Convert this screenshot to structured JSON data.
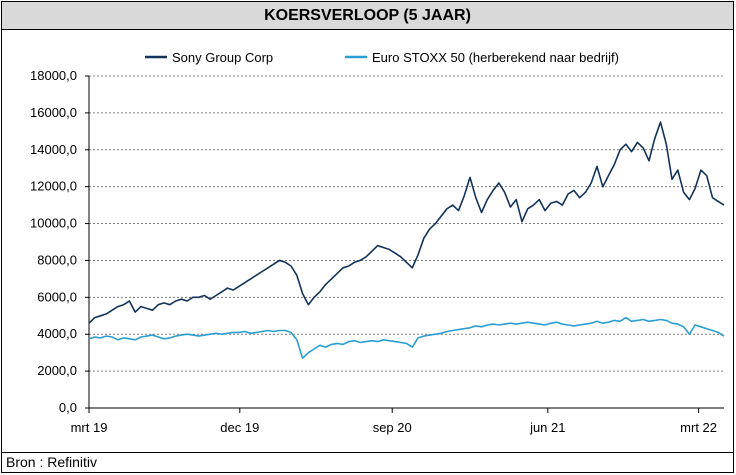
{
  "title": "KOERSVERLOOP (5 JAAR)",
  "source": "Bron : Refinitiv",
  "colors": {
    "sony": "#13335a",
    "stoxx": "#2b9fd3",
    "grid": "#7f7f7f"
  },
  "chart_data": {
    "type": "line",
    "title": "KOERSVERLOOP (5 JAAR)",
    "xlabel": "",
    "ylabel": "",
    "x_ticks": [
      "mrt 19",
      "dec 19",
      "sep 20",
      "jun 21",
      "mrt 22"
    ],
    "y_ticks": [
      "0,0",
      "2000,0",
      "4000,0",
      "6000,0",
      "8000,0",
      "10000,0",
      "12000,0",
      "14000,0",
      "16000,0",
      "18000,0"
    ],
    "ylim": [
      0,
      18000
    ],
    "grid": true,
    "legend_position": "top",
    "series": [
      {
        "name": "Sony Group Corp",
        "color": "#13335a",
        "values": [
          4600,
          4900,
          5000,
          5100,
          5300,
          5500,
          5600,
          5800,
          5200,
          5500,
          5400,
          5300,
          5600,
          5700,
          5600,
          5800,
          5900,
          5800,
          6000,
          6000,
          6100,
          5900,
          6100,
          6300,
          6500,
          6400,
          6600,
          6800,
          7000,
          7200,
          7400,
          7600,
          7800,
          8000,
          7900,
          7700,
          7200,
          6200,
          5600,
          6000,
          6300,
          6700,
          7000,
          7300,
          7600,
          7700,
          7900,
          8000,
          8200,
          8500,
          8800,
          8700,
          8600,
          8400,
          8200,
          7900,
          7600,
          8300,
          9200,
          9700,
          10000,
          10400,
          10800,
          11000,
          10700,
          11500,
          12500,
          11400,
          10600,
          11300,
          11800,
          12200,
          11700,
          10900,
          11300,
          10100,
          10800,
          11000,
          11300,
          10700,
          11100,
          11200,
          11000,
          11600,
          11800,
          11400,
          11700,
          12200,
          13100,
          12000,
          12600,
          13200,
          14000,
          14300,
          13900,
          14400,
          14100,
          13400,
          14600,
          15500,
          14300,
          12400,
          12900,
          11700,
          11300,
          11900,
          12900,
          12600,
          11400,
          11200,
          11000
        ]
      },
      {
        "name": "Euro STOXX 50 (herberekend naar bedrijf)",
        "color": "#2b9fd3",
        "values": [
          3750,
          3850,
          3800,
          3900,
          3850,
          3700,
          3800,
          3750,
          3700,
          3850,
          3900,
          3950,
          3850,
          3750,
          3800,
          3900,
          3950,
          4000,
          3950,
          3900,
          3950,
          4000,
          4050,
          4000,
          4050,
          4100,
          4100,
          4150,
          4050,
          4100,
          4150,
          4200,
          4150,
          4200,
          4200,
          4100,
          3700,
          2700,
          3000,
          3200,
          3400,
          3300,
          3450,
          3500,
          3450,
          3600,
          3650,
          3550,
          3600,
          3650,
          3600,
          3700,
          3650,
          3600,
          3550,
          3500,
          3300,
          3800,
          3900,
          3950,
          4000,
          4050,
          4150,
          4200,
          4250,
          4300,
          4350,
          4450,
          4400,
          4500,
          4550,
          4500,
          4550,
          4600,
          4550,
          4600,
          4650,
          4600,
          4550,
          4500,
          4600,
          4650,
          4550,
          4500,
          4450,
          4500,
          4550,
          4600,
          4700,
          4600,
          4650,
          4750,
          4700,
          4900,
          4700,
          4750,
          4800,
          4700,
          4750,
          4800,
          4750,
          4600,
          4550,
          4400,
          4000,
          4500,
          4400,
          4300,
          4200,
          4100,
          3900
        ]
      }
    ]
  }
}
